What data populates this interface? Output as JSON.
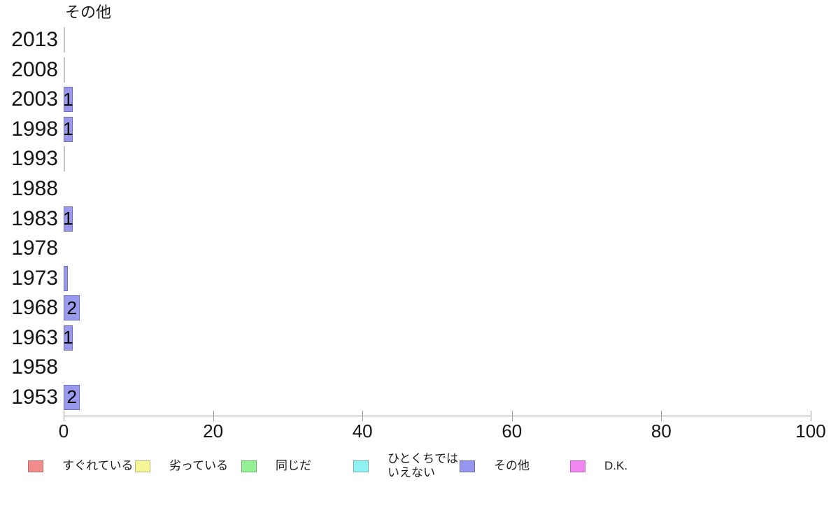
{
  "page": {
    "background": "#ffffff"
  },
  "chart_data": {
    "type": "bar",
    "orientation": "horizontal",
    "title": "その他",
    "categories": [
      "2013",
      "2008",
      "2003",
      "1998",
      "1993",
      "1988",
      "1983",
      "1978",
      "1973",
      "1968",
      "1963",
      "1958",
      "1953"
    ],
    "values": [
      0,
      0,
      1,
      1,
      0,
      null,
      1,
      null,
      0.4,
      2,
      1,
      null,
      2
    ],
    "rows": [
      {
        "year": "2013",
        "value": 0,
        "label": "",
        "style": "zero-line"
      },
      {
        "year": "2008",
        "value": 0,
        "label": "",
        "style": "zero-line"
      },
      {
        "year": "2003",
        "value": 1,
        "label": "1",
        "style": "bar"
      },
      {
        "year": "1998",
        "value": 1,
        "label": "1",
        "style": "bar"
      },
      {
        "year": "1993",
        "value": 0,
        "label": "",
        "style": "zero-line"
      },
      {
        "year": "1988",
        "value": null,
        "label": "",
        "style": "none"
      },
      {
        "year": "1983",
        "value": 1,
        "label": "1",
        "style": "bar"
      },
      {
        "year": "1978",
        "value": null,
        "label": "",
        "style": "none"
      },
      {
        "year": "1973",
        "value": 0.4,
        "label": "",
        "style": "bar"
      },
      {
        "year": "1968",
        "value": 2,
        "label": "2",
        "style": "bar"
      },
      {
        "year": "1963",
        "value": 1,
        "label": "1",
        "style": "bar"
      },
      {
        "year": "1958",
        "value": null,
        "label": "",
        "style": "none"
      },
      {
        "year": "1953",
        "value": 2,
        "label": "2",
        "style": "bar"
      }
    ],
    "xlim": [
      0,
      100
    ],
    "x_ticks": [
      "0",
      "20",
      "40",
      "60",
      "80",
      "100"
    ],
    "grid": false,
    "legend_position": "bottom",
    "legend": [
      {
        "label": "すぐれている",
        "lines": [
          "すぐれている"
        ],
        "fill": "#f08c8c",
        "border": "#b96a6a"
      },
      {
        "label": "劣っている",
        "lines": [
          "劣っている"
        ],
        "fill": "#f5f596",
        "border": "#b9b975"
      },
      {
        "label": "同じだ",
        "lines": [
          "同じだ"
        ],
        "fill": "#93f093",
        "border": "#70b570"
      },
      {
        "label": "ひとくちではいえない",
        "lines": [
          "ひとくちでは",
          "いえない"
        ],
        "fill": "#8ff2f2",
        "border": "#6fb5b5"
      },
      {
        "label": "その他",
        "lines": [
          "その他"
        ],
        "fill": "#9595ee",
        "border": "#7171b5"
      },
      {
        "label": "D.K.",
        "lines": [
          "D.K."
        ],
        "fill": "#f287f2",
        "border": "#b566b5"
      }
    ],
    "series_shown": "その他",
    "bar_fill": "#9999ee",
    "bar_border": "#6e6eb4",
    "zero_line_color": "#c2c2c2",
    "axis_color": "#999999",
    "text_color": "#1a1a1a"
  }
}
